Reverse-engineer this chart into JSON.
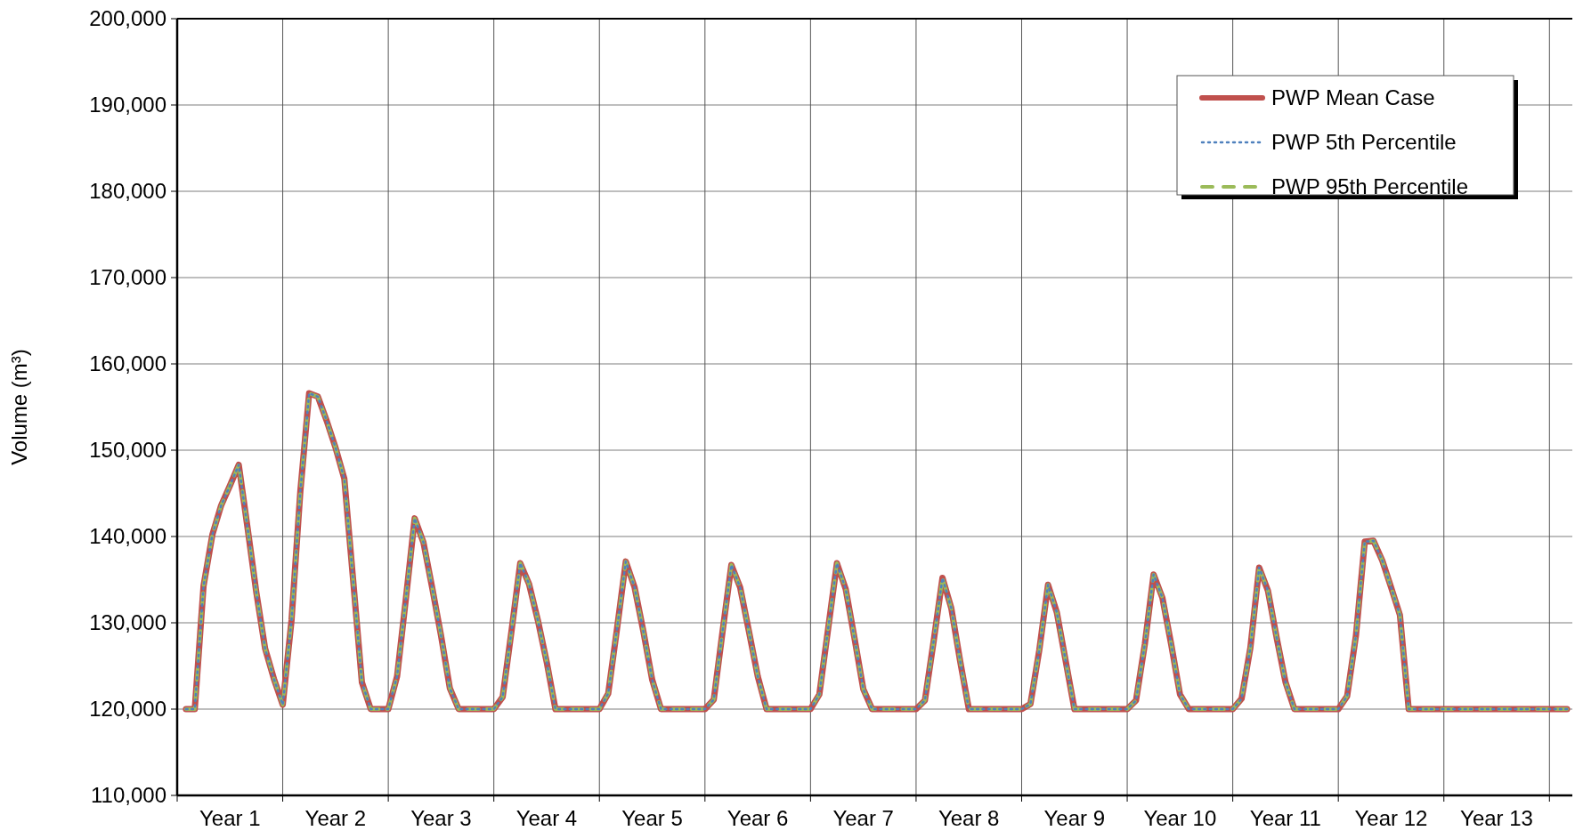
{
  "chart_data": {
    "type": "line",
    "ylabel": "Volume (m³)",
    "categories": [
      null,
      null,
      null,
      null,
      null,
      "Year 1",
      null,
      null,
      null,
      null,
      null,
      null,
      null,
      null,
      null,
      null,
      null,
      "Year 2",
      null,
      null,
      null,
      null,
      null,
      null,
      null,
      null,
      null,
      null,
      null,
      "Year 3",
      null,
      null,
      null,
      null,
      null,
      null,
      null,
      null,
      null,
      null,
      null,
      "Year 4",
      null,
      null,
      null,
      null,
      null,
      null,
      null,
      null,
      null,
      null,
      null,
      "Year 5",
      null,
      null,
      null,
      null,
      null,
      null,
      null,
      null,
      null,
      null,
      null,
      "Year 6",
      null,
      null,
      null,
      null,
      null,
      null,
      null,
      null,
      null,
      null,
      null,
      "Year 7",
      null,
      null,
      null,
      null,
      null,
      null,
      null,
      null,
      null,
      null,
      null,
      "Year 8",
      null,
      null,
      null,
      null,
      null,
      null,
      null,
      null,
      null,
      null,
      null,
      "Year 9",
      null,
      null,
      null,
      null,
      null,
      null,
      null,
      null,
      null,
      null,
      null,
      "Year 10",
      null,
      null,
      null,
      null,
      null,
      null,
      null,
      null,
      null,
      null,
      null,
      "Year 11",
      null,
      null,
      null,
      null,
      null,
      null,
      null,
      null,
      null,
      null,
      null,
      "Year 12",
      null,
      null,
      null,
      null,
      null,
      null,
      null,
      null,
      null,
      null,
      null,
      "Year 13",
      null,
      null,
      null,
      null,
      null,
      null,
      null,
      null
    ],
    "series": [
      {
        "name": "PWP Mean Case",
        "color": "#c0504d",
        "line_style": "solid",
        "values": [
          120000,
          120000,
          134300,
          140200,
          143600,
          145900,
          148300,
          141000,
          133500,
          127000,
          123500,
          120500,
          130300,
          145200,
          156600,
          156200,
          153400,
          150300,
          146700,
          135000,
          123100,
          120000,
          120000,
          120000,
          123800,
          132800,
          142100,
          139300,
          134000,
          128500,
          122400,
          120000,
          120000,
          120000,
          120000,
          120000,
          121400,
          129000,
          136900,
          134500,
          130300,
          125500,
          120000,
          120000,
          120000,
          120000,
          120000,
          120000,
          121800,
          129300,
          137100,
          134100,
          129000,
          123400,
          120000,
          120000,
          120000,
          120000,
          120000,
          120000,
          121100,
          129000,
          136700,
          134100,
          129000,
          123800,
          120000,
          120000,
          120000,
          120000,
          120000,
          120000,
          121700,
          129300,
          136900,
          133900,
          128200,
          122300,
          120000,
          120000,
          120000,
          120000,
          120000,
          120000,
          121000,
          127900,
          135200,
          131700,
          125600,
          120000,
          120000,
          120000,
          120000,
          120000,
          120000,
          120000,
          120600,
          126800,
          134400,
          131200,
          125600,
          120000,
          120000,
          120000,
          120000,
          120000,
          120000,
          120000,
          121000,
          127500,
          135600,
          132900,
          127500,
          121700,
          120000,
          120000,
          120000,
          120000,
          120000,
          120000,
          121200,
          127100,
          136400,
          133700,
          128200,
          123100,
          120000,
          120000,
          120000,
          120000,
          120000,
          120000,
          121500,
          128500,
          139400,
          139500,
          137200,
          134100,
          130900,
          120000,
          120000,
          120000,
          120000,
          120000,
          120000,
          120000,
          120000,
          120000,
          120000,
          120000,
          120000,
          120000,
          120000,
          120000,
          120000,
          120000,
          120000,
          120000
        ]
      },
      {
        "name": "PWP 5th Percentile",
        "color": "#4f81bd",
        "line_style": "dotted",
        "values": [
          120000,
          120000,
          134300,
          140200,
          143600,
          145900,
          148300,
          141000,
          133500,
          127000,
          123500,
          120500,
          130300,
          145200,
          156600,
          156200,
          153400,
          150300,
          146700,
          135000,
          123100,
          120000,
          120000,
          120000,
          123800,
          132800,
          142100,
          139300,
          134000,
          128500,
          122400,
          120000,
          120000,
          120000,
          120000,
          120000,
          121400,
          129000,
          136900,
          134500,
          130300,
          125500,
          120000,
          120000,
          120000,
          120000,
          120000,
          120000,
          121800,
          129300,
          137100,
          134100,
          129000,
          123400,
          120000,
          120000,
          120000,
          120000,
          120000,
          120000,
          121100,
          129000,
          136700,
          134100,
          129000,
          123800,
          120000,
          120000,
          120000,
          120000,
          120000,
          120000,
          121700,
          129300,
          136900,
          133900,
          128200,
          122300,
          120000,
          120000,
          120000,
          120000,
          120000,
          120000,
          121000,
          127900,
          135200,
          131700,
          125600,
          120000,
          120000,
          120000,
          120000,
          120000,
          120000,
          120000,
          120600,
          126800,
          134400,
          131200,
          125600,
          120000,
          120000,
          120000,
          120000,
          120000,
          120000,
          120000,
          121000,
          127500,
          135600,
          132900,
          127500,
          121700,
          120000,
          120000,
          120000,
          120000,
          120000,
          120000,
          121200,
          127100,
          136400,
          133700,
          128200,
          123100,
          120000,
          120000,
          120000,
          120000,
          120000,
          120000,
          121500,
          128500,
          139400,
          139500,
          137200,
          134100,
          130900,
          120000,
          120000,
          120000,
          120000,
          120000,
          120000,
          120000,
          120000,
          120000,
          120000,
          120000,
          120000,
          120000,
          120000,
          120000,
          120000,
          120000,
          120000,
          120000
        ]
      },
      {
        "name": "PWP 95th Percentile",
        "color": "#9bbb59",
        "line_style": "dashed",
        "values": [
          120000,
          120000,
          134300,
          140200,
          143600,
          145900,
          148300,
          141000,
          133500,
          127000,
          123500,
          120500,
          130300,
          145200,
          156600,
          156200,
          153400,
          150300,
          146700,
          135000,
          123100,
          120000,
          120000,
          120000,
          123800,
          132800,
          142100,
          139300,
          134000,
          128500,
          122400,
          120000,
          120000,
          120000,
          120000,
          120000,
          121400,
          129000,
          136900,
          134500,
          130300,
          125500,
          120000,
          120000,
          120000,
          120000,
          120000,
          120000,
          121800,
          129300,
          137100,
          134100,
          129000,
          123400,
          120000,
          120000,
          120000,
          120000,
          120000,
          120000,
          121100,
          129000,
          136700,
          134100,
          129000,
          123800,
          120000,
          120000,
          120000,
          120000,
          120000,
          120000,
          121700,
          129300,
          136900,
          133900,
          128200,
          122300,
          120000,
          120000,
          120000,
          120000,
          120000,
          120000,
          121000,
          127900,
          135200,
          131700,
          125600,
          120000,
          120000,
          120000,
          120000,
          120000,
          120000,
          120000,
          120600,
          126800,
          134400,
          131200,
          125600,
          120000,
          120000,
          120000,
          120000,
          120000,
          120000,
          120000,
          121000,
          127500,
          135600,
          132900,
          127500,
          121700,
          120000,
          120000,
          120000,
          120000,
          120000,
          120000,
          121200,
          127100,
          136400,
          133700,
          128200,
          123100,
          120000,
          120000,
          120000,
          120000,
          120000,
          120000,
          121500,
          128500,
          139400,
          139500,
          137200,
          134100,
          130900,
          120000,
          120000,
          120000,
          120000,
          120000,
          120000,
          120000,
          120000,
          120000,
          120000,
          120000,
          120000,
          120000,
          120000,
          120000,
          120000,
          120000,
          120000,
          120000
        ]
      }
    ],
    "ylim": [
      110000,
      200000
    ],
    "yticks": [
      {
        "value": 110000,
        "label": "110,000"
      },
      {
        "value": 120000,
        "label": "120,000"
      },
      {
        "value": 130000,
        "label": "130,000"
      },
      {
        "value": 140000,
        "label": "140,000"
      },
      {
        "value": 150000,
        "label": "150,000"
      },
      {
        "value": 160000,
        "label": "160,000"
      },
      {
        "value": 170000,
        "label": "170,000"
      },
      {
        "value": 180000,
        "label": "180,000"
      },
      {
        "value": 190000,
        "label": "190,000"
      },
      {
        "value": 200000,
        "label": "200,000"
      }
    ],
    "grid": true,
    "legend": "top right"
  }
}
